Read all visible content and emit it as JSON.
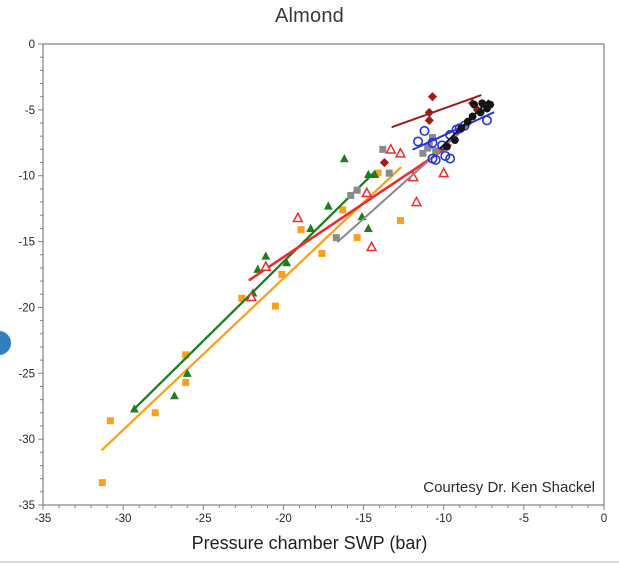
{
  "title": "Almond",
  "credit": "Courtesy Dr. Ken Shackel",
  "chart_data": {
    "type": "scatter",
    "title": "Almond",
    "xlabel": "Pressure chamber SWP (bar)",
    "ylabel": "",
    "xlim": [
      -35,
      0
    ],
    "ylim": [
      -35,
      0
    ],
    "x_ticks": [
      -35,
      -30,
      -25,
      -20,
      -15,
      -10,
      -5,
      0
    ],
    "y_ticks": [
      0,
      -5,
      -10,
      -15,
      -20,
      -25,
      -30,
      -35
    ],
    "minor_tick_interval": 1,
    "grid": false,
    "legend_position": "none",
    "annotation": "Courtesy Dr. Ken Shackel",
    "axis_color": "#808080",
    "series": [
      {
        "name": "orange-square",
        "marker": "square",
        "open": false,
        "color": "#f9a11b",
        "line_width": 2.3,
        "points": [
          [
            -31.3,
            -33.3
          ],
          [
            -30.8,
            -28.6
          ],
          [
            -28.0,
            -28.0
          ],
          [
            -26.1,
            -23.6
          ],
          [
            -26.1,
            -25.7
          ],
          [
            -22.6,
            -19.3
          ],
          [
            -20.5,
            -19.9
          ],
          [
            -20.1,
            -17.5
          ],
          [
            -18.9,
            -14.1
          ],
          [
            -17.6,
            -15.9
          ],
          [
            -16.3,
            -12.6
          ],
          [
            -15.4,
            -14.7
          ],
          [
            -14.1,
            -9.8
          ],
          [
            -12.7,
            -13.4
          ]
        ],
        "trend": [
          [
            -31.3,
            -30.8
          ],
          [
            -12.7,
            -9.4
          ]
        ]
      },
      {
        "name": "green-triangle",
        "marker": "triangle",
        "open": false,
        "color": "#1e7d1e",
        "line_width": 2.3,
        "points": [
          [
            -29.3,
            -27.7
          ],
          [
            -26.8,
            -26.7
          ],
          [
            -26.0,
            -25.0
          ],
          [
            -21.9,
            -18.9
          ],
          [
            -21.6,
            -17.1
          ],
          [
            -21.1,
            -16.1
          ],
          [
            -19.8,
            -16.6
          ],
          [
            -18.3,
            -14.0
          ],
          [
            -17.2,
            -12.3
          ],
          [
            -16.2,
            -8.7
          ],
          [
            -15.1,
            -13.1
          ],
          [
            -14.7,
            -14.0
          ],
          [
            -14.7,
            -9.9
          ],
          [
            -14.3,
            -9.9
          ]
        ],
        "trend": [
          [
            -29.3,
            -27.7
          ],
          [
            -14.3,
            -9.7
          ]
        ]
      },
      {
        "name": "red-open-triangle",
        "marker": "triangle",
        "open": true,
        "color": "#ec2d2d",
        "line_width": 2.6,
        "points": [
          [
            -22.0,
            -19.2
          ],
          [
            -21.1,
            -16.9
          ],
          [
            -19.1,
            -13.2
          ],
          [
            -14.5,
            -15.4
          ],
          [
            -14.8,
            -11.3
          ],
          [
            -13.3,
            -8.0
          ],
          [
            -12.7,
            -8.3
          ],
          [
            -11.9,
            -10.1
          ],
          [
            -11.7,
            -12.0
          ],
          [
            -10.0,
            -9.8
          ]
        ],
        "trend": [
          [
            -22.1,
            -17.9
          ],
          [
            -9.6,
            -7.7
          ]
        ]
      },
      {
        "name": "gray-square",
        "marker": "square",
        "open": false,
        "color": "#8a8a8a",
        "line_width": 2.0,
        "points": [
          [
            -16.7,
            -14.7
          ],
          [
            -15.8,
            -11.5
          ],
          [
            -15.4,
            -11.1
          ],
          [
            -13.8,
            -8.0
          ],
          [
            -13.4,
            -9.8
          ],
          [
            -11.3,
            -8.3
          ],
          [
            -11.0,
            -7.9
          ],
          [
            -10.9,
            -7.7
          ],
          [
            -10.7,
            -7.1
          ],
          [
            -10.5,
            -8.1
          ]
        ],
        "trend": [
          [
            -16.6,
            -15.0
          ],
          [
            -8.5,
            -6.2
          ]
        ]
      },
      {
        "name": "maroon-diamond",
        "marker": "diamond",
        "open": false,
        "color": "#9e1b1b",
        "line_width": 2.0,
        "points": [
          [
            -13.7,
            -9.0
          ],
          [
            -10.7,
            -4.0
          ],
          [
            -10.9,
            -5.2
          ],
          [
            -10.9,
            -5.8
          ],
          [
            -8.2,
            -4.5
          ],
          [
            -7.9,
            -5.0
          ]
        ],
        "trend": [
          [
            -13.2,
            -6.3
          ],
          [
            -7.7,
            -3.9
          ]
        ]
      },
      {
        "name": "blue-open-circle",
        "marker": "circle",
        "open": true,
        "color": "#2433d8",
        "line_width": 2.0,
        "points": [
          [
            -11.6,
            -7.4
          ],
          [
            -11.2,
            -6.6
          ],
          [
            -10.7,
            -7.5
          ],
          [
            -10.1,
            -7.7
          ],
          [
            -10.7,
            -8.7
          ],
          [
            -10.5,
            -8.8
          ],
          [
            -9.9,
            -8.5
          ],
          [
            -9.6,
            -8.7
          ],
          [
            -9.6,
            -6.9
          ],
          [
            -9.2,
            -6.5
          ],
          [
            -9.0,
            -6.4
          ],
          [
            -8.7,
            -6.2
          ],
          [
            -7.3,
            -5.8
          ]
        ],
        "trend": [
          [
            -11.9,
            -8.0
          ],
          [
            -6.9,
            -5.2
          ]
        ]
      },
      {
        "name": "black-circle",
        "marker": "circle",
        "open": false,
        "color": "#141414",
        "line_width": 2.0,
        "points": [
          [
            -9.8,
            -7.8
          ],
          [
            -9.3,
            -7.3
          ],
          [
            -8.9,
            -6.4
          ],
          [
            -8.5,
            -5.9
          ],
          [
            -8.2,
            -5.5
          ],
          [
            -8.1,
            -4.6
          ],
          [
            -7.7,
            -5.2
          ],
          [
            -7.6,
            -4.5
          ],
          [
            -7.3,
            -4.9
          ],
          [
            -7.1,
            -4.6
          ]
        ],
        "trend": [
          [
            -10.2,
            -7.9
          ],
          [
            -7.2,
            -4.3
          ]
        ]
      }
    ]
  }
}
